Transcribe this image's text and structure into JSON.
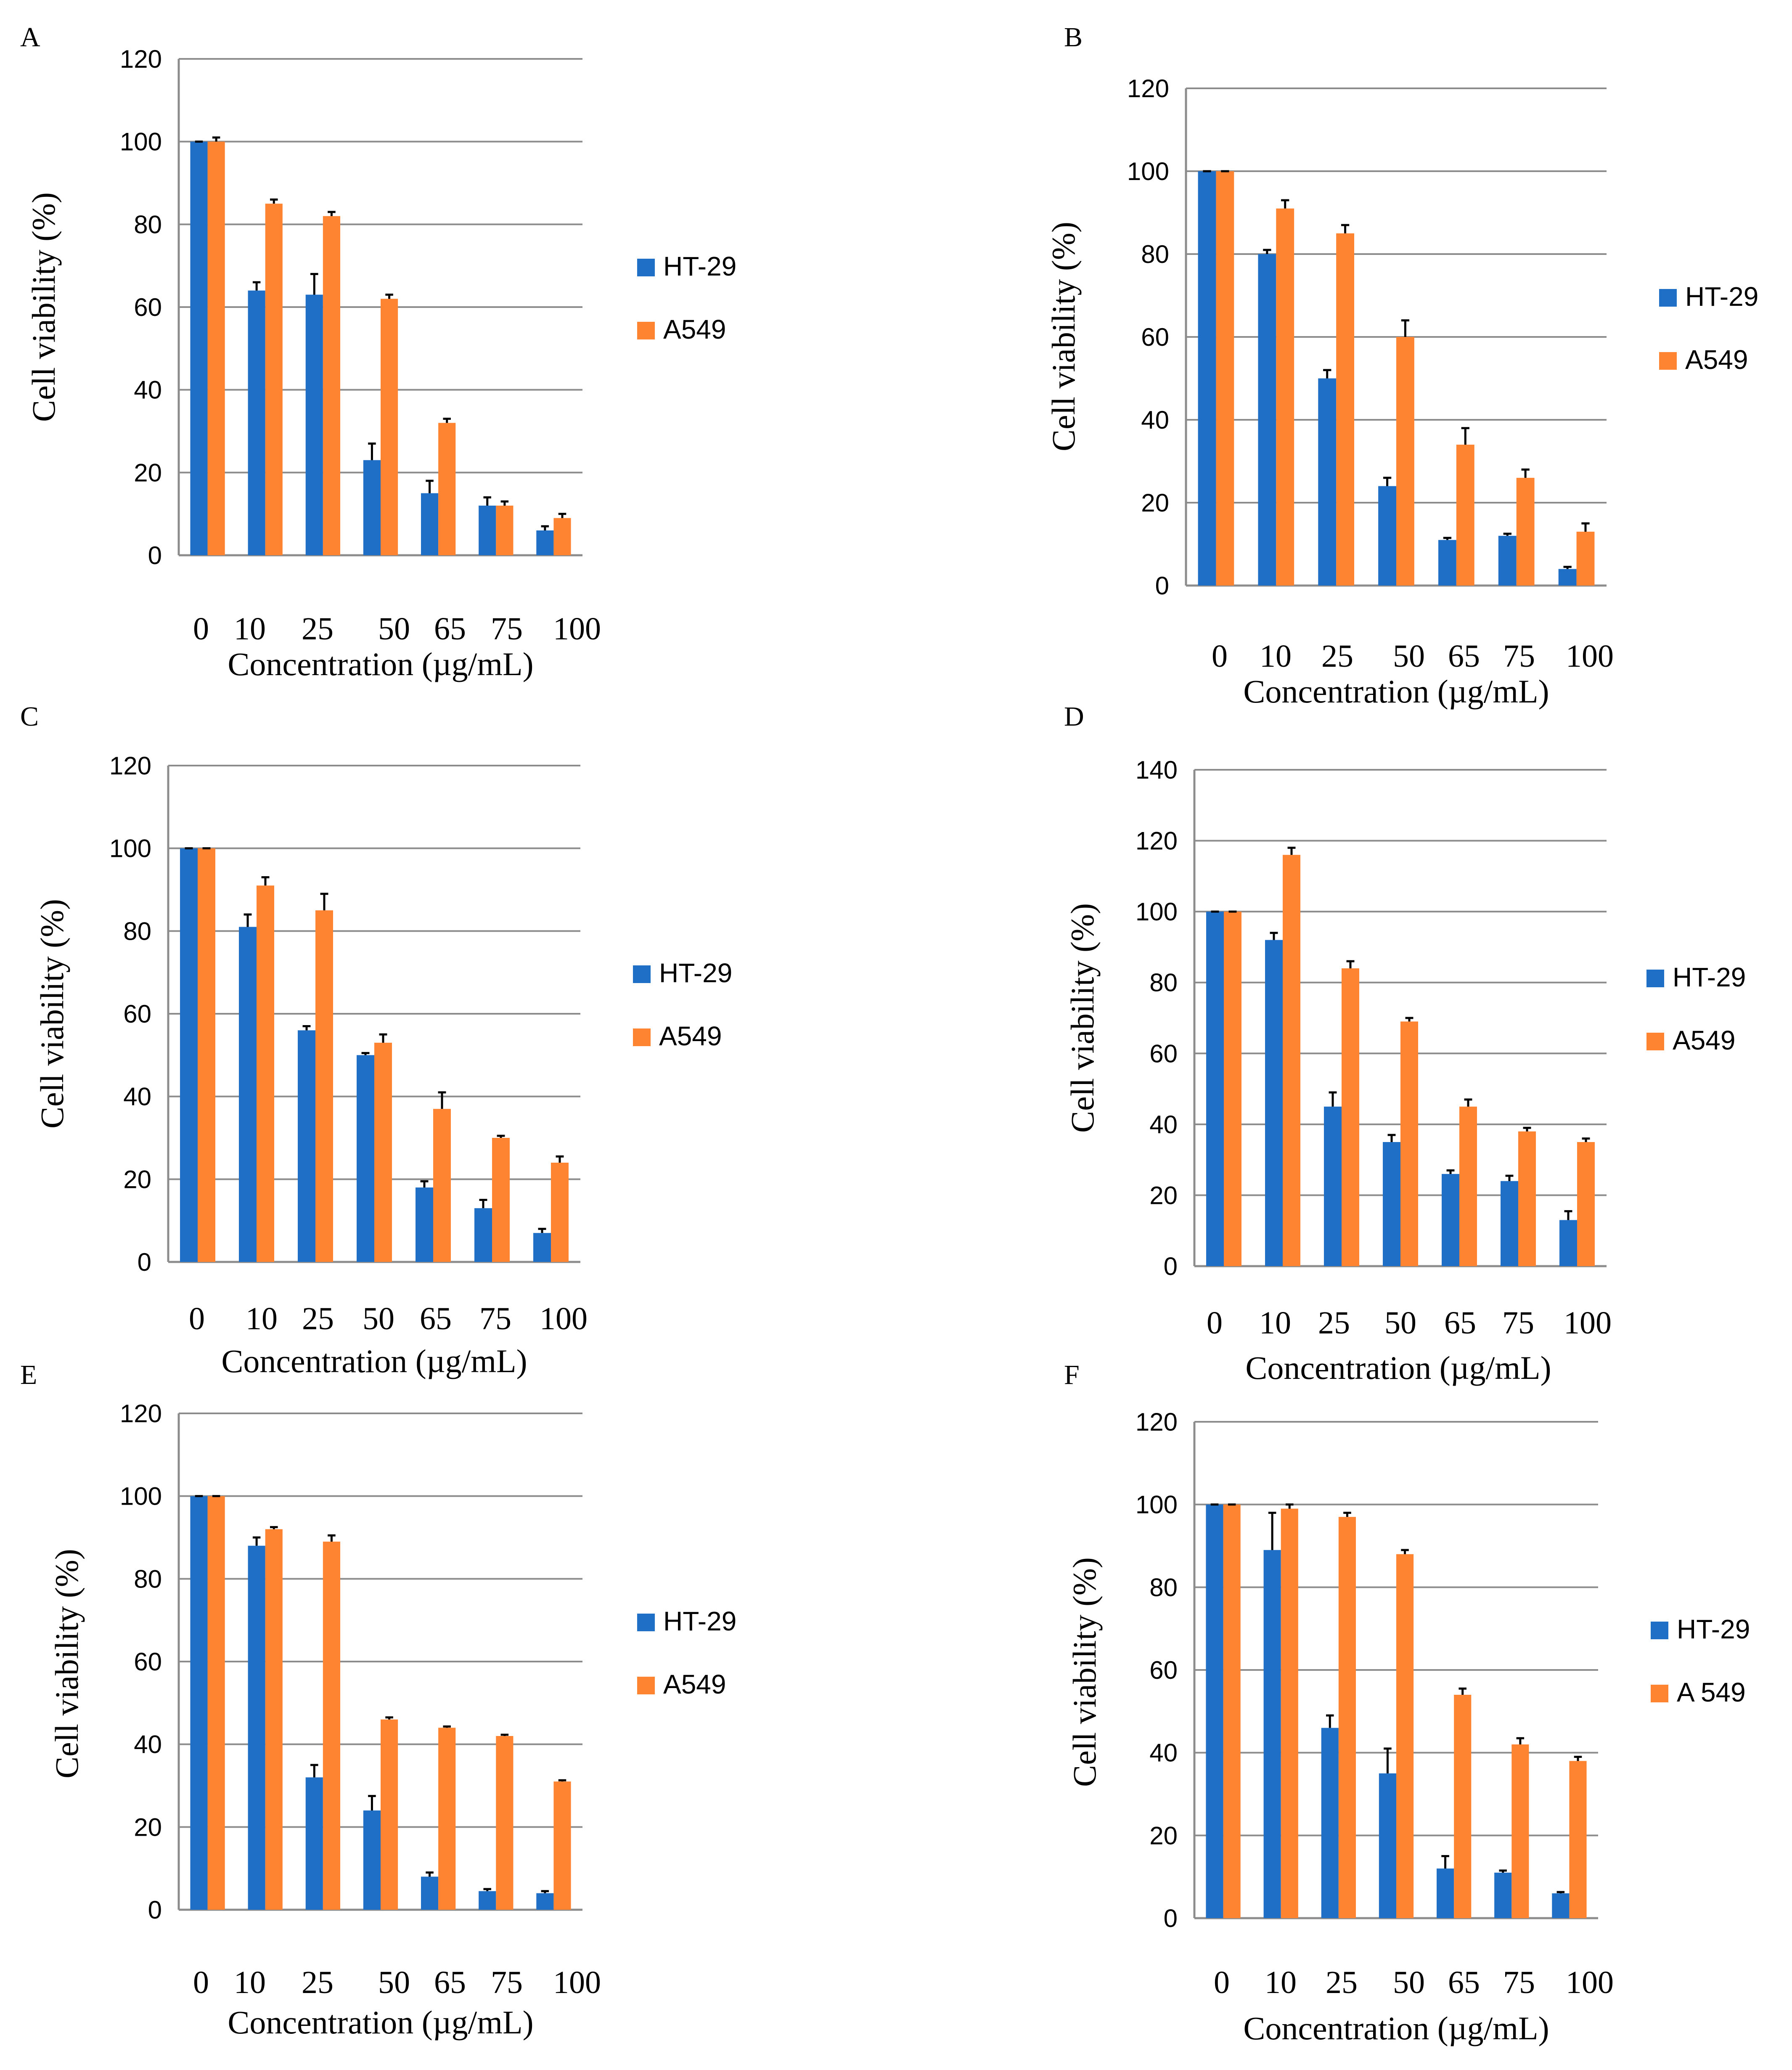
{
  "colors": {
    "HT-29": "#1F6FC6",
    "A549": "#FF8431"
  },
  "chart_data": [
    {
      "panel": "A",
      "type": "bar",
      "categories": [
        "0",
        "10",
        "25",
        "50",
        "65",
        "75",
        "100"
      ],
      "xlabel": "Concentration (µg/mL)",
      "ylabel": "Cell viability (%)",
      "ylim": [
        0,
        120
      ],
      "yticks": [
        0,
        20,
        40,
        60,
        80,
        100,
        120
      ],
      "grid": true,
      "legend_position": "right",
      "series": [
        {
          "name": "HT-29",
          "values": [
            100,
            64,
            63,
            23,
            15,
            12,
            6
          ],
          "errors": [
            0,
            2,
            5,
            4,
            3,
            2,
            1
          ]
        },
        {
          "name": "A549",
          "values": [
            100,
            85,
            82,
            62,
            32,
            12,
            9
          ],
          "errors": [
            1,
            1,
            1,
            1,
            1,
            1,
            1
          ]
        }
      ]
    },
    {
      "panel": "B",
      "type": "bar",
      "categories": [
        "0",
        "10",
        "25",
        "50",
        "65",
        "75",
        "100"
      ],
      "xlabel": "Concentration (µg/mL)",
      "ylabel": "Cell viability (%)",
      "ylim": [
        0,
        120
      ],
      "yticks": [
        0,
        20,
        40,
        60,
        80,
        100,
        120
      ],
      "grid": true,
      "legend_position": "right",
      "series": [
        {
          "name": "HT-29",
          "values": [
            100,
            80,
            50,
            24,
            11,
            12,
            4
          ],
          "errors": [
            0,
            1,
            2,
            2,
            0.5,
            0.5,
            0.5
          ]
        },
        {
          "name": "A549",
          "values": [
            100,
            91,
            85,
            60,
            34,
            26,
            13
          ],
          "errors": [
            0,
            2,
            2,
            4,
            4,
            2,
            2
          ]
        }
      ]
    },
    {
      "panel": "C",
      "type": "bar",
      "categories": [
        "0",
        "10",
        "25",
        "50",
        "65",
        "75",
        "100"
      ],
      "xlabel": "Concentration (µg/mL)",
      "ylabel": "Cell viability (%)",
      "ylim": [
        0,
        120
      ],
      "yticks": [
        0,
        20,
        40,
        60,
        80,
        100,
        120
      ],
      "grid": true,
      "legend_position": "right",
      "series": [
        {
          "name": "HT-29",
          "values": [
            100,
            81,
            56,
            50,
            18,
            13,
            7
          ],
          "errors": [
            0,
            3,
            1,
            0.5,
            1.5,
            2,
            1
          ]
        },
        {
          "name": "A549",
          "values": [
            100,
            91,
            85,
            53,
            37,
            30,
            24
          ],
          "errors": [
            0,
            2,
            4,
            2,
            4,
            0.5,
            1.5
          ]
        }
      ]
    },
    {
      "panel": "D",
      "type": "bar",
      "categories": [
        "0",
        "10",
        "25",
        "50",
        "65",
        "75",
        "100"
      ],
      "xlabel": "Concentration (µg/mL)",
      "ylabel": "Cell viability (%)",
      "ylim": [
        0,
        140
      ],
      "yticks": [
        0,
        20,
        40,
        60,
        80,
        100,
        120,
        140
      ],
      "grid": true,
      "legend_position": "right",
      "series": [
        {
          "name": "HT-29",
          "values": [
            100,
            92,
            45,
            35,
            26,
            24,
            13
          ],
          "errors": [
            0,
            2,
            4,
            2,
            1,
            1.5,
            2.5
          ]
        },
        {
          "name": "A549",
          "values": [
            100,
            116,
            84,
            69,
            45,
            38,
            35
          ],
          "errors": [
            0,
            2,
            2,
            1,
            2,
            1,
            1
          ]
        }
      ]
    },
    {
      "panel": "E",
      "type": "bar",
      "categories": [
        "0",
        "10",
        "25",
        "50",
        "65",
        "75",
        "100"
      ],
      "xlabel": "Concentration (µg/mL)",
      "ylabel": "Cell viability (%)",
      "ylim": [
        0,
        120
      ],
      "yticks": [
        0,
        20,
        40,
        60,
        80,
        100,
        120
      ],
      "grid": true,
      "legend_position": "right",
      "series": [
        {
          "name": "HT-29",
          "values": [
            100,
            88,
            32,
            24,
            8,
            4.5,
            4
          ],
          "errors": [
            0,
            2,
            3,
            3.5,
            1,
            0.5,
            0.5
          ]
        },
        {
          "name": "A549",
          "values": [
            100,
            92,
            89,
            46,
            44,
            42,
            31
          ],
          "errors": [
            0,
            0.5,
            1.5,
            0.5,
            0.3,
            0.3,
            0.3
          ]
        }
      ]
    },
    {
      "panel": "F",
      "type": "bar",
      "categories": [
        "0",
        "10",
        "25",
        "50",
        "65",
        "75",
        "100"
      ],
      "xlabel": "Concentration (µg/mL)",
      "ylabel": "Cell viability (%)",
      "ylim": [
        0,
        120
      ],
      "yticks": [
        0,
        20,
        40,
        60,
        80,
        100,
        120
      ],
      "grid": true,
      "legend_position": "right",
      "series": [
        {
          "name": "HT-29",
          "values": [
            100,
            89,
            46,
            35,
            12,
            11,
            6
          ],
          "errors": [
            0,
            9,
            3,
            6,
            3,
            0.5,
            0.3
          ]
        },
        {
          "name": "A 549",
          "values": [
            100,
            99,
            97,
            88,
            54,
            42,
            38
          ],
          "errors": [
            0,
            1,
            1,
            1,
            1.5,
            1.5,
            1
          ]
        }
      ]
    }
  ]
}
